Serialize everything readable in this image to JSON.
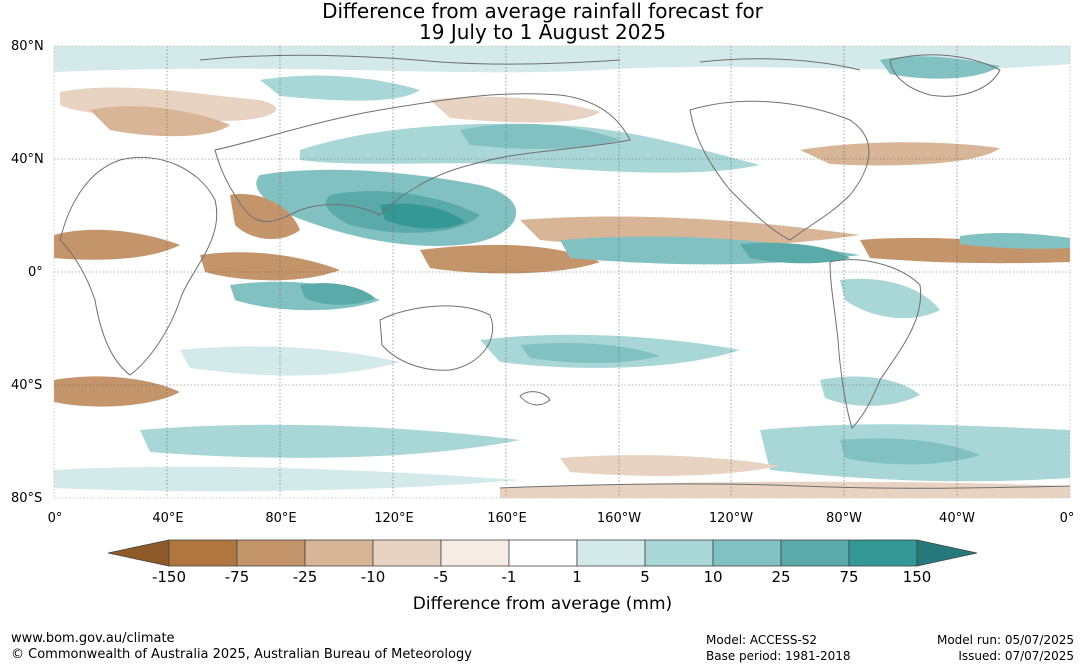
{
  "title": {
    "line1": "Difference from average rainfall forecast for",
    "line2": "19 July to 1 August 2025"
  },
  "latitude_labels": [
    "80°N",
    "40°N",
    "0°",
    "40°S",
    "80°S"
  ],
  "longitude_labels": [
    "0°",
    "40°E",
    "80°E",
    "120°E",
    "160°E",
    "160°W",
    "120°W",
    "80°W",
    "40°W",
    "0°"
  ],
  "colorbar": {
    "tick_labels": [
      "-150",
      "-75",
      "-25",
      "-10",
      "-5",
      "-1",
      "1",
      "5",
      "10",
      "25",
      "75",
      "150"
    ],
    "colors": [
      "#8f5a2a",
      "#b07640",
      "#c4946a",
      "#d8b596",
      "#e8d3c3",
      "#f5ece6",
      "#ffffff",
      "#d4e9e9",
      "#a9d6d6",
      "#82c1c1",
      "#5aaaaa",
      "#339896",
      "#26797a"
    ],
    "label": "Difference from average (mm)"
  },
  "footer": {
    "website": "www.bom.gov.au/climate",
    "copyright": "© Commonwealth of Australia 2025, Australian Bureau of Meteorology",
    "model": "Model: ACCESS-S2",
    "base_period": "Base period: 1981-2018",
    "model_run": "Model run: 05/07/2025",
    "issued": "Issued: 07/07/2025"
  }
}
